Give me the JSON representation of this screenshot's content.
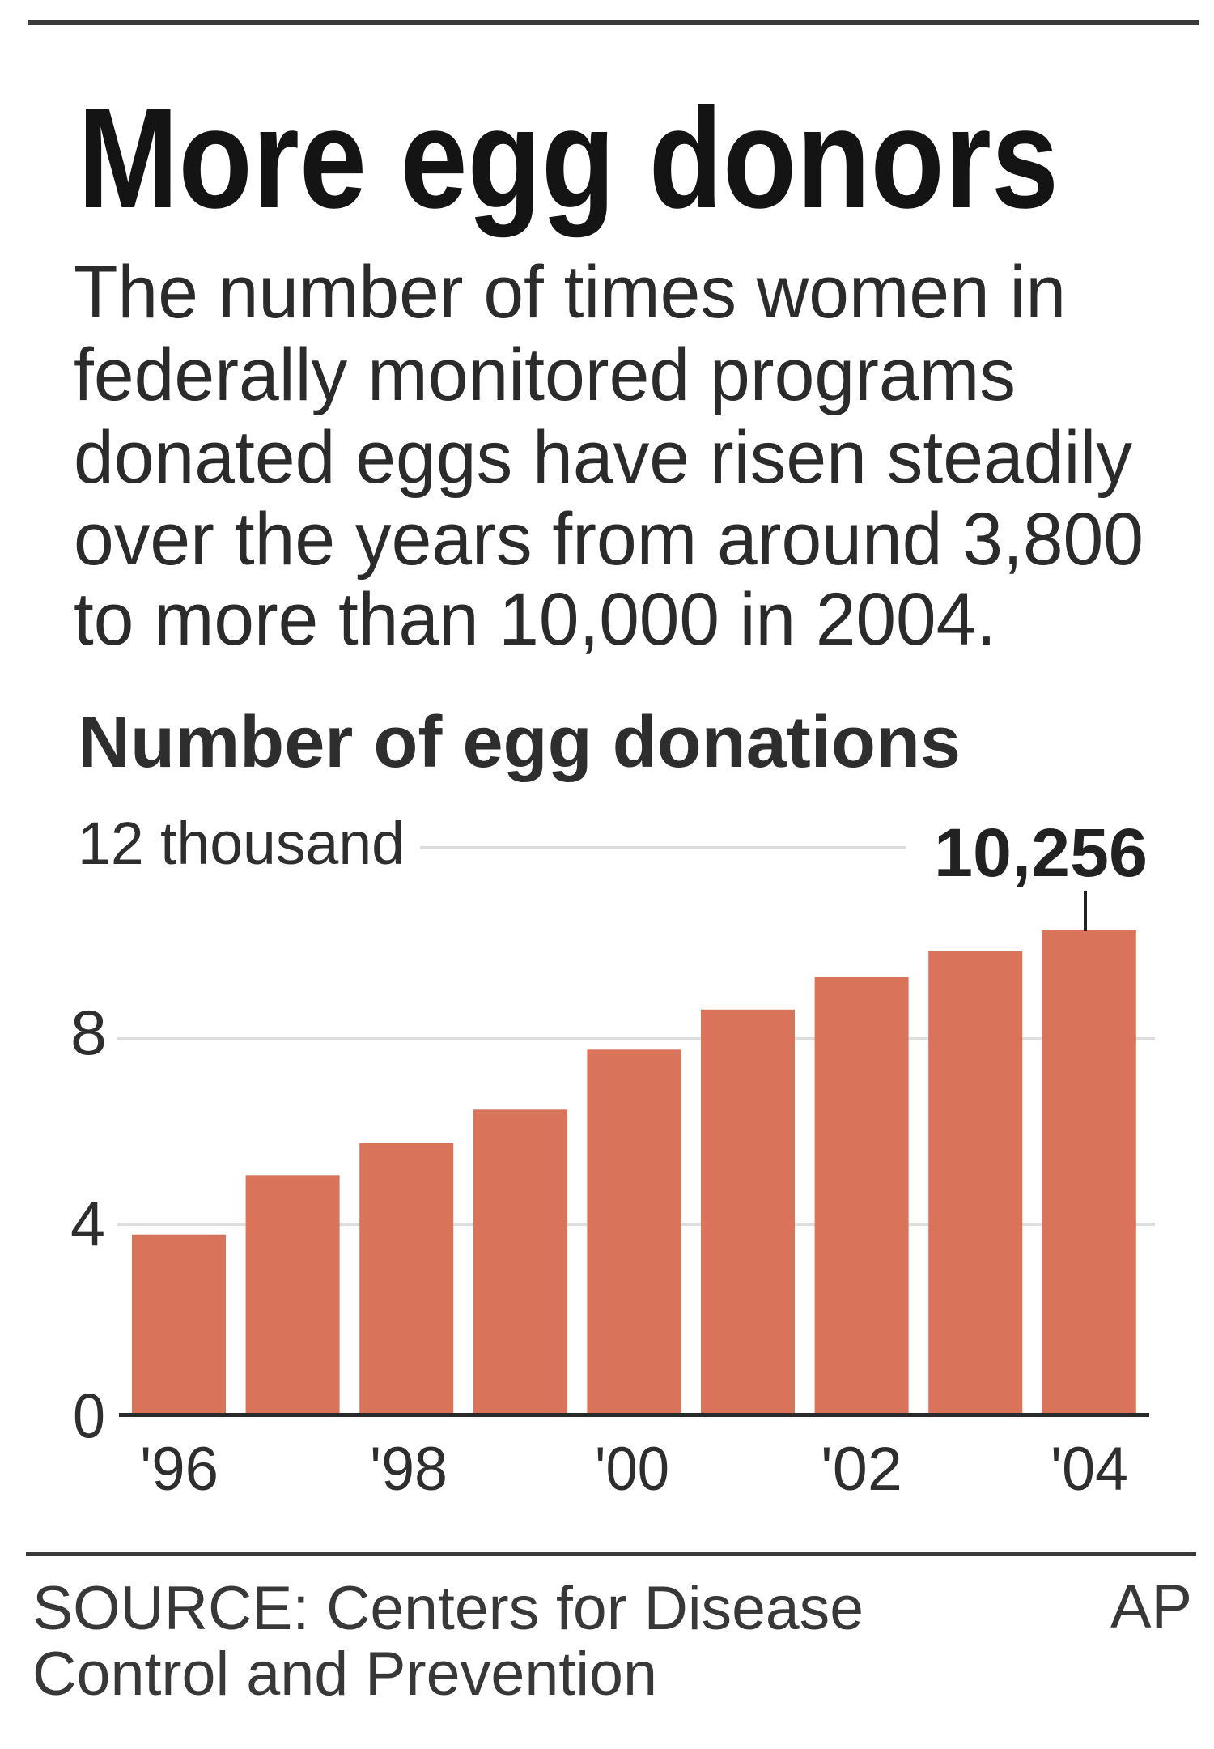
{
  "header": {
    "title": "More egg donors",
    "description_lines": [
      "The number of times women in",
      "federally monitored programs",
      "donated eggs have risen steadily",
      "over the years from around 3,800",
      "to more than 10,000 in 2004."
    ]
  },
  "chart": {
    "heading": "Number of egg donations",
    "y_ticks": [
      {
        "value": 12,
        "label": "12 thousand"
      },
      {
        "value": 8,
        "label": "8"
      },
      {
        "value": 4,
        "label": "4"
      },
      {
        "value": 0,
        "label": "0"
      }
    ],
    "x_labels": [
      "'96",
      "'98",
      "'00",
      "'02",
      "'04"
    ],
    "callout": {
      "label": "10,256",
      "year": "2004"
    }
  },
  "footer": {
    "source_lines": [
      "SOURCE: Centers for Disease",
      "Control and Prevention"
    ],
    "credit": "AP"
  },
  "colors": {
    "bar": "#D9735A",
    "gridline": "#DDDDDD",
    "axis": "#2a2a2a",
    "rule": "#3a3a3a"
  },
  "chart_data": {
    "type": "bar",
    "title": "More egg donors",
    "subtitle": "Number of egg donations",
    "categories": [
      "1996",
      "1997",
      "1998",
      "1999",
      "2000",
      "2001",
      "2002",
      "2003",
      "2004"
    ],
    "tick_labels_x": [
      "'96",
      "'98",
      "'00",
      "'02",
      "'04"
    ],
    "values": [
      3800,
      5060,
      5740,
      6450,
      7720,
      8570,
      9260,
      9820,
      10256
    ],
    "annotations": [
      {
        "category": "2004",
        "text": "10,256"
      }
    ],
    "xlabel": "",
    "ylabel": "thousand",
    "ylim": [
      0,
      12000
    ],
    "y_ticks": [
      0,
      4000,
      8000,
      12000
    ],
    "grid": true,
    "legend": null,
    "source": "SOURCE: Centers for Disease Control and Prevention",
    "credit": "AP"
  }
}
